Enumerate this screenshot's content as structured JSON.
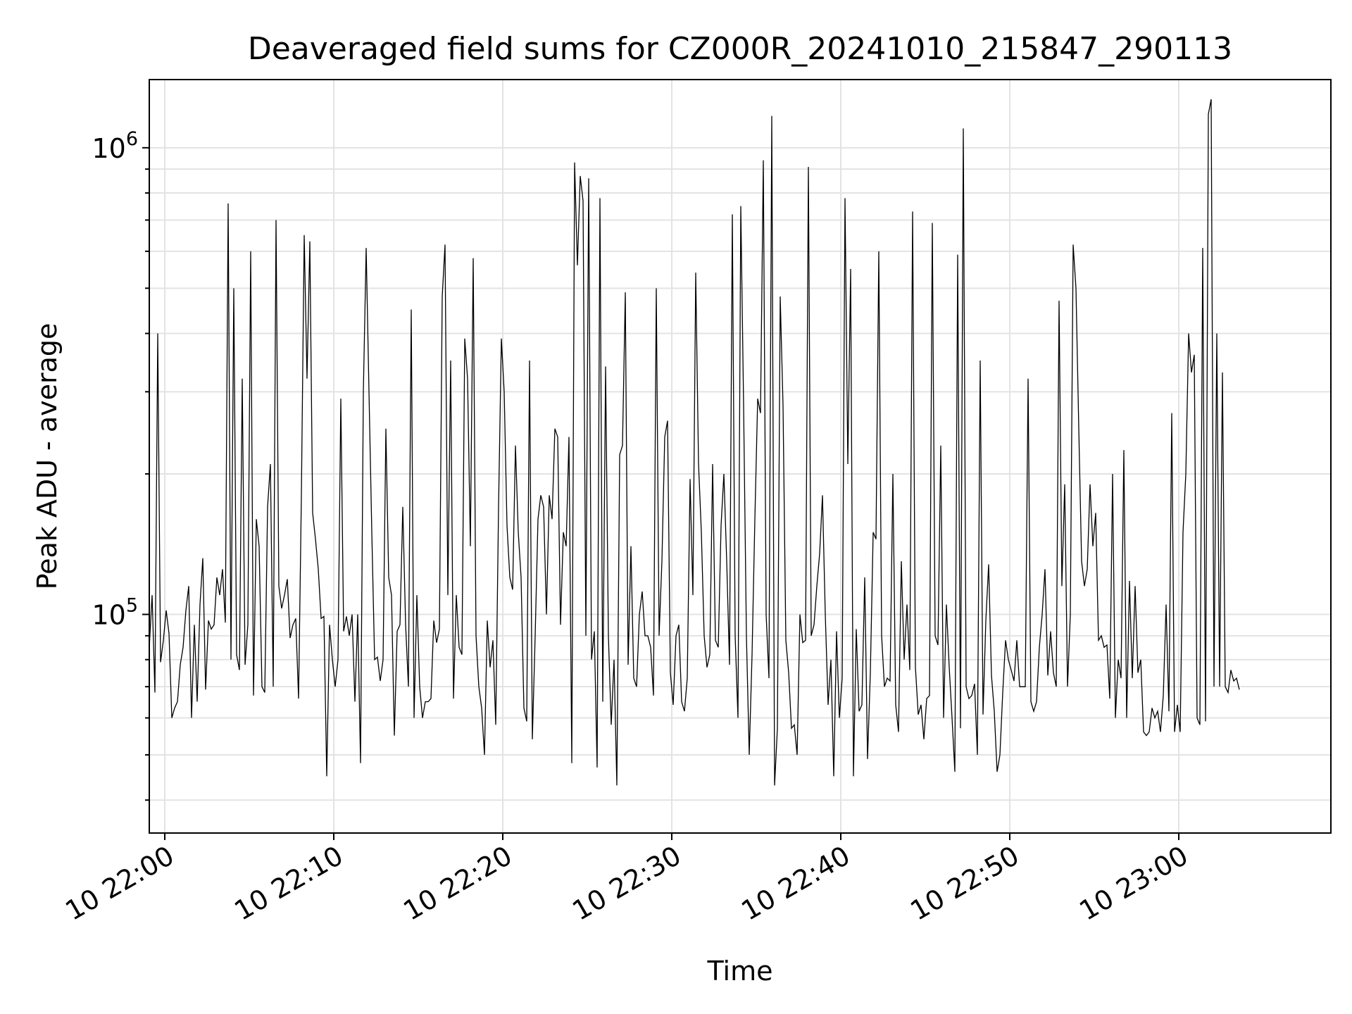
{
  "chart_data": {
    "type": "line",
    "title": "Deaveraged field sums for CZ000R_20241010_215847_290113",
    "xlabel": "Time",
    "ylabel": "Peak ADU - average",
    "y_scale": "log",
    "ylim": [
      34000,
      1400000
    ],
    "xlim": [
      "2024-10-10 21:59:05",
      "2024-10-10 23:09:00"
    ],
    "grid": true,
    "line_color": "#000000",
    "x_ticks": [
      {
        "t": "2024-10-10 22:00",
        "label": "10 22:00"
      },
      {
        "t": "2024-10-10 22:10",
        "label": "10 22:10"
      },
      {
        "t": "2024-10-10 22:20",
        "label": "10 22:20"
      },
      {
        "t": "2024-10-10 22:30",
        "label": "10 22:30"
      },
      {
        "t": "2024-10-10 22:40",
        "label": "10 22:40"
      },
      {
        "t": "2024-10-10 22:50",
        "label": "10 22:50"
      },
      {
        "t": "2024-10-10 23:00",
        "label": "10 23:00"
      }
    ],
    "y_ticks": [
      {
        "value": 100000,
        "base": "10",
        "exp": "5"
      },
      {
        "value": 1000000,
        "base": "10",
        "exp": "6"
      }
    ],
    "series": [
      {
        "start": "2024-10-10 21:59:05",
        "step_seconds": 10,
        "values": [
          85000,
          110000,
          68000,
          400000,
          79000,
          88000,
          102000,
          91000,
          60000,
          63000,
          65000,
          78000,
          85000,
          102000,
          115000,
          60000,
          95000,
          65000,
          105000,
          132000,
          69000,
          97000,
          93000,
          95000,
          120000,
          110000,
          125000,
          96000,
          760000,
          80000,
          500000,
          82000,
          76000,
          320000,
          78000,
          95000,
          600000,
          67000,
          160000,
          140000,
          70000,
          68000,
          170000,
          210000,
          70000,
          700000,
          115000,
          103000,
          110000,
          119000,
          89000,
          95000,
          98000,
          66000,
          180000,
          650000,
          320000,
          630000,
          165000,
          145000,
          125000,
          98000,
          99000,
          45000,
          95000,
          80000,
          70000,
          80000,
          290000,
          92000,
          99000,
          90000,
          100000,
          65000,
          100000,
          48000,
          300000,
          610000,
          300000,
          150000,
          80000,
          81000,
          72000,
          80000,
          250000,
          120000,
          110000,
          55000,
          92000,
          95000,
          170000,
          95000,
          70000,
          450000,
          60000,
          110000,
          70000,
          60000,
          65000,
          65000,
          66000,
          97000,
          87000,
          93000,
          480000,
          620000,
          110000,
          350000,
          66000,
          110000,
          85000,
          82000,
          390000,
          320000,
          140000,
          580000,
          90000,
          70000,
          63000,
          50000,
          97000,
          77000,
          88000,
          58000,
          170000,
          390000,
          300000,
          155000,
          120000,
          113000,
          230000,
          150000,
          120000,
          63000,
          59000,
          350000,
          54000,
          90000,
          160000,
          180000,
          170000,
          100000,
          180000,
          160000,
          250000,
          240000,
          95000,
          150000,
          140000,
          240000,
          48000,
          930000,
          560000,
          870000,
          770000,
          90000,
          860000,
          80000,
          92000,
          47000,
          780000,
          65000,
          340000,
          90000,
          58000,
          80000,
          43000,
          220000,
          230000,
          490000,
          78000,
          140000,
          73000,
          70000,
          100000,
          112000,
          90000,
          90000,
          85000,
          67000,
          500000,
          90000,
          130000,
          240000,
          260000,
          75000,
          64000,
          90000,
          95000,
          65000,
          62000,
          73000,
          195000,
          110000,
          540000,
          210000,
          150000,
          90000,
          77000,
          82000,
          210000,
          88000,
          85000,
          155000,
          200000,
          130000,
          78000,
          720000,
          90000,
          60000,
          750000,
          280000,
          90000,
          50000,
          82000,
          160000,
          290000,
          270000,
          940000,
          100000,
          73000,
          1170000,
          43000,
          57000,
          480000,
          280000,
          88000,
          75000,
          57000,
          58000,
          50000,
          100000,
          87000,
          88000,
          910000,
          90000,
          95000,
          115000,
          135000,
          180000,
          100000,
          64000,
          80000,
          45000,
          92000,
          60000,
          73000,
          780000,
          210000,
          550000,
          45000,
          93000,
          62000,
          64000,
          120000,
          49000,
          75000,
          150000,
          145000,
          600000,
          90000,
          70000,
          73000,
          72000,
          200000,
          64000,
          56000,
          130000,
          80000,
          105000,
          76000,
          730000,
          77000,
          61000,
          64000,
          54000,
          66000,
          67000,
          690000,
          90000,
          86000,
          230000,
          60000,
          105000,
          77000,
          60000,
          46000,
          590000,
          57000,
          1100000,
          70000,
          66000,
          67000,
          71000,
          50000,
          350000,
          61000,
          97000,
          128000,
          74000,
          62000,
          46000,
          50000,
          68000,
          88000,
          80000,
          76000,
          72000,
          88000,
          70000,
          70000,
          70000,
          320000,
          65000,
          62000,
          65000,
          85000,
          100000,
          125000,
          74000,
          92000,
          75000,
          70000,
          470000,
          115000,
          190000,
          70000,
          100000,
          620000,
          500000,
          250000,
          130000,
          115000,
          125000,
          190000,
          140000,
          165000,
          88000,
          90000,
          85000,
          86000,
          66000,
          200000,
          60000,
          80000,
          73000,
          225000,
          60000,
          118000,
          73000,
          115000,
          75000,
          80000,
          56000,
          55000,
          56000,
          63000,
          60000,
          62000,
          56000,
          67000,
          105000,
          62000,
          270000,
          56000,
          64000,
          56000,
          150000,
          200000,
          400000,
          330000,
          360000,
          60000,
          58000,
          610000,
          59000,
          1180000,
          1270000,
          70000,
          400000,
          70000,
          330000,
          70000,
          68000,
          76000,
          72000,
          73000,
          69000
        ]
      }
    ]
  }
}
